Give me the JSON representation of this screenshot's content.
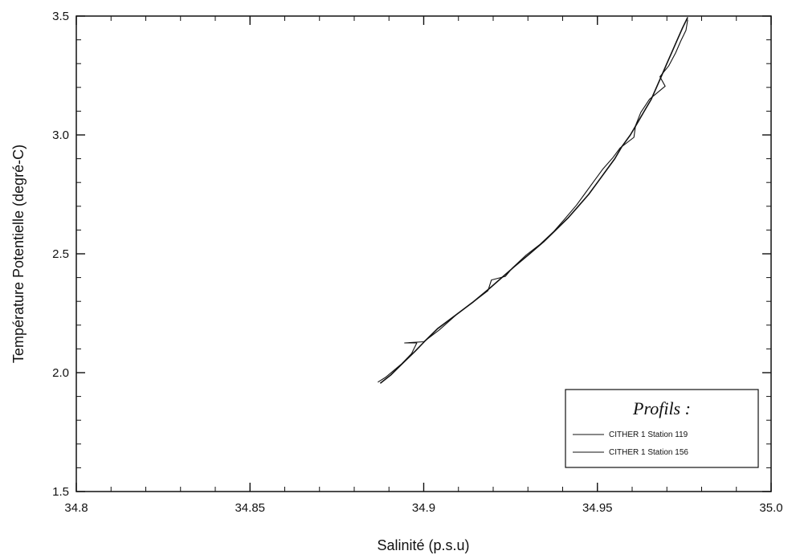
{
  "chart_data": {
    "type": "line",
    "xlabel": "Salinité (p.s.u)",
    "ylabel": "Température Potentielle (degré-C)",
    "xlim": [
      34.8,
      35.0
    ],
    "ylim": [
      1.5,
      3.5
    ],
    "x_ticks": [
      {
        "value": 34.8,
        "label": "34.8"
      },
      {
        "value": 34.85,
        "label": "34.85"
      },
      {
        "value": 34.9,
        "label": "34.9"
      },
      {
        "value": 34.95,
        "label": "34.95"
      },
      {
        "value": 35.0,
        "label": "35.0"
      }
    ],
    "y_ticks": [
      {
        "value": 1.5,
        "label": "1.5"
      },
      {
        "value": 2.0,
        "label": "2.0"
      },
      {
        "value": 2.5,
        "label": "2.5"
      },
      {
        "value": 3.0,
        "label": "3.0"
      },
      {
        "value": 3.5,
        "label": "3.5"
      }
    ],
    "minor_ticks": {
      "x_step": 0.01,
      "y_step": 0.1
    },
    "grid": false,
    "legend": {
      "title": "Profils :",
      "position": "bottom-right"
    },
    "series": [
      {
        "name": "CITHER 1  Station 119",
        "color": "#111111",
        "points": [
          [
            34.8875,
            1.955
          ],
          [
            34.8905,
            1.99
          ],
          [
            34.894,
            2.04
          ],
          [
            34.8975,
            2.09
          ],
          [
            34.9005,
            2.135
          ],
          [
            34.904,
            2.185
          ],
          [
            34.909,
            2.24
          ],
          [
            34.914,
            2.295
          ],
          [
            34.919,
            2.355
          ],
          [
            34.9225,
            2.4
          ],
          [
            34.926,
            2.445
          ],
          [
            34.9305,
            2.5
          ],
          [
            34.9345,
            2.55
          ],
          [
            34.938,
            2.6
          ],
          [
            34.9415,
            2.65
          ],
          [
            34.9445,
            2.7
          ],
          [
            34.9475,
            2.75
          ],
          [
            34.95,
            2.8
          ],
          [
            34.9525,
            2.85
          ],
          [
            34.955,
            2.9
          ],
          [
            34.957,
            2.95
          ],
          [
            34.9595,
            3.0
          ],
          [
            34.9615,
            3.05
          ],
          [
            34.9635,
            3.1
          ],
          [
            34.9655,
            3.15
          ],
          [
            34.967,
            3.2
          ],
          [
            34.9685,
            3.25
          ],
          [
            34.97,
            3.3
          ],
          [
            34.9715,
            3.35
          ],
          [
            34.973,
            3.4
          ],
          [
            34.9745,
            3.45
          ],
          [
            34.976,
            3.495
          ]
        ]
      },
      {
        "name": "CITHER 1  Station 156",
        "color": "#111111",
        "points": [
          [
            34.8868,
            1.96
          ],
          [
            34.889,
            1.98
          ],
          [
            34.8935,
            2.035
          ],
          [
            34.8965,
            2.08
          ],
          [
            34.898,
            2.125
          ],
          [
            34.8945,
            2.125
          ],
          [
            34.9,
            2.13
          ],
          [
            34.9045,
            2.18
          ],
          [
            34.9095,
            2.245
          ],
          [
            34.9145,
            2.3
          ],
          [
            34.9185,
            2.345
          ],
          [
            34.9195,
            2.39
          ],
          [
            34.9235,
            2.405
          ],
          [
            34.9255,
            2.44
          ],
          [
            34.9295,
            2.495
          ],
          [
            34.9335,
            2.54
          ],
          [
            34.9375,
            2.595
          ],
          [
            34.9405,
            2.645
          ],
          [
            34.944,
            2.705
          ],
          [
            34.9465,
            2.755
          ],
          [
            34.949,
            2.805
          ],
          [
            34.9515,
            2.855
          ],
          [
            34.9545,
            2.905
          ],
          [
            34.9565,
            2.945
          ],
          [
            34.9605,
            2.99
          ],
          [
            34.961,
            3.04
          ],
          [
            34.9625,
            3.095
          ],
          [
            34.965,
            3.15
          ],
          [
            34.9695,
            3.205
          ],
          [
            34.968,
            3.245
          ],
          [
            34.9705,
            3.29
          ],
          [
            34.9725,
            3.345
          ],
          [
            34.974,
            3.395
          ],
          [
            34.9755,
            3.44
          ],
          [
            34.976,
            3.485
          ]
        ]
      }
    ]
  }
}
